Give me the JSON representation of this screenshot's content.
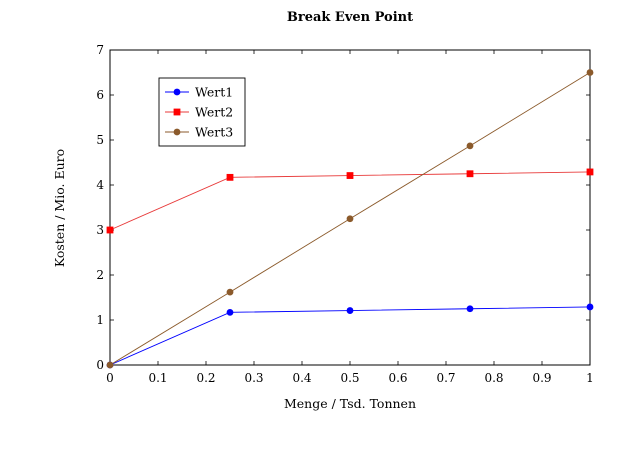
{
  "chart_data": {
    "type": "line",
    "title": "Break Even Point",
    "xlabel": "Menge / Tsd. Tonnen",
    "ylabel": "Kosten / Mio. Euro",
    "xlim": [
      0,
      1
    ],
    "ylim": [
      0,
      7
    ],
    "xticks": [
      0,
      0.1,
      0.2,
      0.3,
      0.4,
      0.5,
      0.6,
      0.7,
      0.8,
      0.9,
      1
    ],
    "xtick_labels": [
      "0",
      "0.1",
      "0.2",
      "0.3",
      "0.4",
      "0.5",
      "0.6",
      "0.7",
      "0.8",
      "0.9",
      "1"
    ],
    "yticks": [
      0,
      1,
      2,
      3,
      4,
      5,
      6,
      7
    ],
    "ytick_labels": [
      "0",
      "1",
      "2",
      "3",
      "4",
      "5",
      "6",
      "7"
    ],
    "grid": false,
    "legend_position": "top-left",
    "x": [
      0,
      0.25,
      0.5,
      0.75,
      1
    ],
    "series": [
      {
        "name": "Wert1",
        "values": [
          0,
          1.17,
          1.21,
          1.25,
          1.29
        ],
        "color": "#0000ff",
        "marker": "circle"
      },
      {
        "name": "Wert2",
        "values": [
          3,
          4.17,
          4.21,
          4.25,
          4.29
        ],
        "color": "#ff0000",
        "stroke": "#e83a3a",
        "marker": "square"
      },
      {
        "name": "Wert3",
        "values": [
          0,
          1.62,
          3.25,
          4.87,
          6.5
        ],
        "color": "#8b5a2b",
        "marker": "circle"
      }
    ]
  }
}
